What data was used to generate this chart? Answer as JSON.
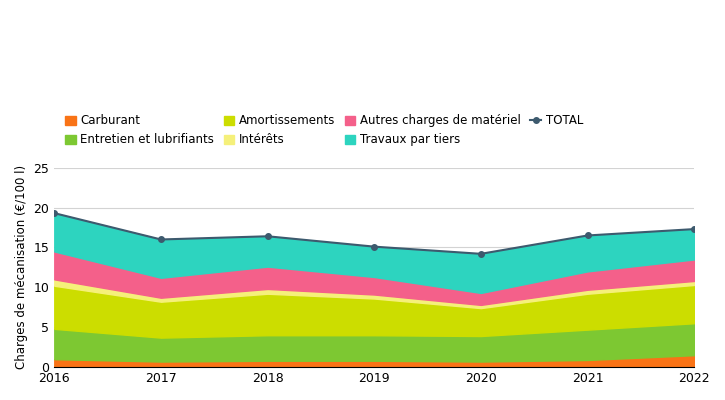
{
  "years": [
    2016,
    2017,
    2018,
    2019,
    2020,
    2021,
    2022
  ],
  "carburant": [
    1.0,
    0.7,
    0.8,
    0.8,
    0.7,
    0.9,
    1.5
  ],
  "entretien": [
    3.8,
    3.0,
    3.2,
    3.2,
    3.2,
    3.8,
    4.0
  ],
  "amortissements": [
    5.4,
    4.5,
    5.2,
    4.6,
    3.5,
    4.5,
    4.8
  ],
  "interets": [
    0.8,
    0.5,
    0.6,
    0.5,
    0.4,
    0.5,
    0.5
  ],
  "autres_charges": [
    3.5,
    2.5,
    2.8,
    2.2,
    1.5,
    2.3,
    2.7
  ],
  "travaux_tiers": [
    4.8,
    4.8,
    3.8,
    3.8,
    4.9,
    4.5,
    3.8
  ],
  "total": [
    19.3,
    16.0,
    16.4,
    15.1,
    14.2,
    16.5,
    17.3
  ],
  "colors": {
    "carburant": "#f97316",
    "entretien": "#7dc832",
    "amortissements": "#ccdd00",
    "interets": "#f5f07a",
    "autres_charges": "#f4608a",
    "travaux_tiers": "#2dd4bf"
  },
  "legend_labels": [
    "Carburant",
    "Entretien et lubrifiants",
    "Amortissements",
    "Intérêts",
    "Autres charges de matériel",
    "Travaux par tiers",
    "TOTAL"
  ],
  "ylabel": "Charges de mécanisation (€/100 l)",
  "ylim": [
    0,
    25
  ],
  "yticks": [
    0,
    5,
    10,
    15,
    20,
    25
  ],
  "total_color": "#3d5a6e",
  "total_marker": "o",
  "total_markersize": 4,
  "total_linewidth": 1.5
}
